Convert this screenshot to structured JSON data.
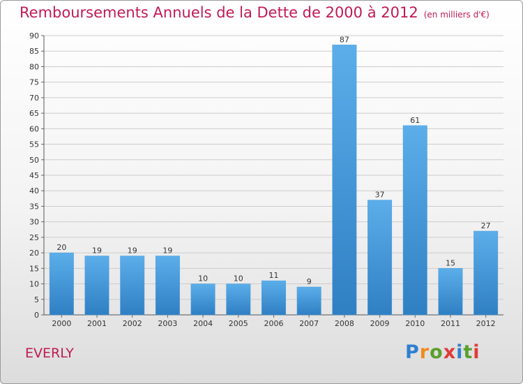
{
  "title": "Remboursements Annuels de la Dette de 2000 à 2012",
  "unit": "(en milliers d'€)",
  "commune": "EVERLY",
  "logo": {
    "letters": [
      "P",
      "r",
      "o",
      "x",
      "i",
      "t",
      "i"
    ],
    "colors": [
      "#2f7fd0",
      "#f08a1a",
      "#5aa02c",
      "#e03a3a",
      "#2f7fd0",
      "#5aa02c",
      "#e03a3a"
    ]
  },
  "colors": {
    "title": "#c01a55",
    "bar_top": "#5caeea",
    "bar_bottom": "#2f7fc3",
    "grid": "#cccccc"
  },
  "chart_data": {
    "type": "bar",
    "categories": [
      "2000",
      "2001",
      "2002",
      "2003",
      "2004",
      "2005",
      "2006",
      "2007",
      "2008",
      "2009",
      "2010",
      "2011",
      "2012"
    ],
    "values": [
      20,
      19,
      19,
      19,
      10,
      10,
      11,
      9,
      87,
      37,
      61,
      15,
      27
    ],
    "ylim": [
      0,
      90
    ],
    "yticks": [
      0,
      5,
      10,
      15,
      20,
      25,
      30,
      35,
      40,
      45,
      50,
      55,
      60,
      65,
      70,
      75,
      80,
      85,
      90
    ],
    "grid": true
  }
}
